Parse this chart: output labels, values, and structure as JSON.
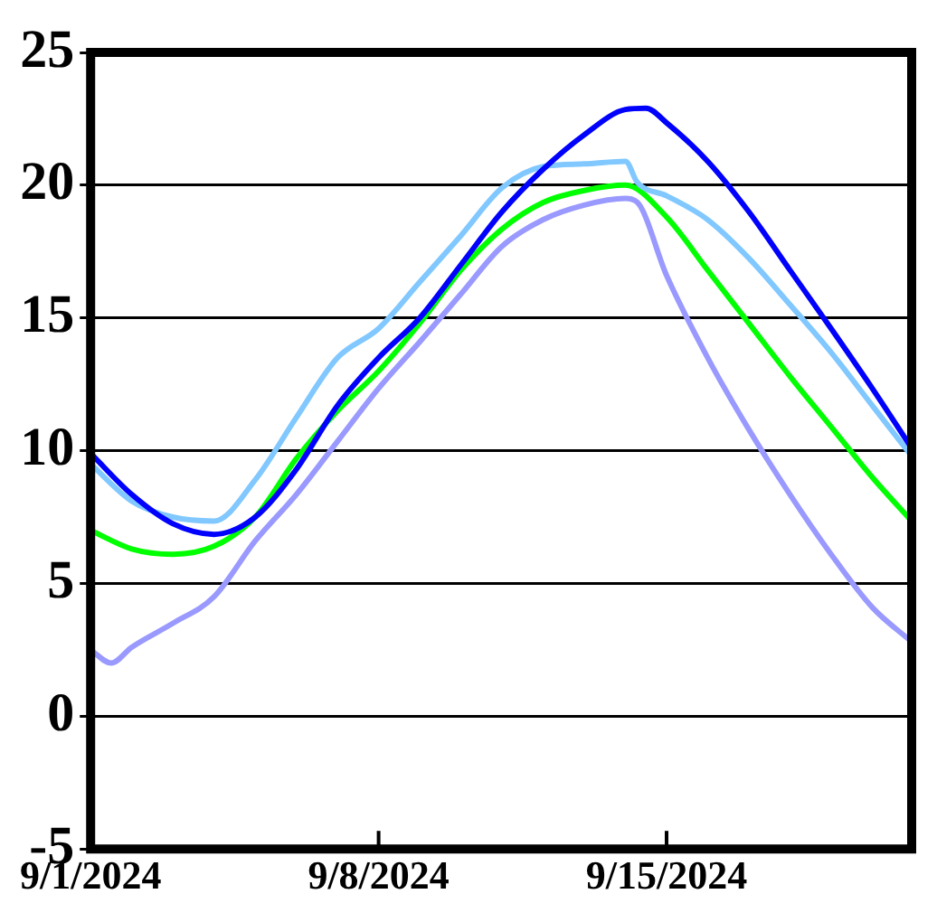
{
  "chart_data": {
    "type": "line",
    "xlim": [
      "2024-09-01",
      "2024-09-20T23:00"
    ],
    "xticks": [
      {
        "value": "2024-09-01",
        "label": "9/1/2024"
      },
      {
        "value": "2024-09-08",
        "label": "9/8/2024"
      },
      {
        "value": "2024-09-15",
        "label": "9/15/2024"
      }
    ],
    "ylim": [
      -5,
      25
    ],
    "yticks": [
      -5,
      0,
      5,
      10,
      15,
      20,
      25
    ],
    "grid": "y",
    "legend": false,
    "marker": "none",
    "line_style": "solid",
    "series": [
      {
        "color": "#0000ff",
        "x": [
          "2024-09-01",
          "2024-09-02",
          "2024-09-03",
          "2024-09-04",
          "2024-09-05",
          "2024-09-06",
          "2024-09-07",
          "2024-09-08",
          "2024-09-09",
          "2024-09-10",
          "2024-09-11",
          "2024-09-12",
          "2024-09-13",
          "2024-09-14",
          "2024-09-14T12:00",
          "2024-09-15",
          "2024-09-16",
          "2024-09-17",
          "2024-09-18",
          "2024-09-19",
          "2024-09-20",
          "2024-09-20T23:00"
        ],
        "values": [
          9.9,
          8.35,
          7.25,
          6.85,
          7.5,
          9.3,
          11.7,
          13.5,
          15,
          17,
          19,
          20.6,
          21.9,
          22.85,
          22.9,
          22.35,
          20.9,
          19,
          16.8,
          14.6,
          12.35,
          10.1
        ]
      },
      {
        "color": "#80c8ff",
        "x": [
          "2024-09-01",
          "2024-09-02",
          "2024-09-03",
          "2024-09-04",
          "2024-09-05",
          "2024-09-06",
          "2024-09-07",
          "2024-09-08",
          "2024-09-09",
          "2024-09-10",
          "2024-09-11",
          "2024-09-12",
          "2024-09-13",
          "2024-09-14",
          "2024-09-14T07:00",
          "2024-09-15",
          "2024-09-16",
          "2024-09-17",
          "2024-09-18",
          "2024-09-19",
          "2024-09-20",
          "2024-09-20T23:00"
        ],
        "values": [
          9.5,
          8.1,
          7.5,
          7.35,
          8.9,
          11.25,
          13.5,
          14.6,
          16.35,
          18.1,
          19.9,
          20.7,
          20.8,
          20.9,
          20.1,
          19.6,
          18.7,
          17.25,
          15.5,
          13.7,
          11.7,
          9.8
        ]
      },
      {
        "color": "#00ff00",
        "x": [
          "2024-09-01",
          "2024-09-02",
          "2024-09-03",
          "2024-09-04",
          "2024-09-05",
          "2024-09-06",
          "2024-09-07",
          "2024-09-08",
          "2024-09-09",
          "2024-09-10",
          "2024-09-11",
          "2024-09-12",
          "2024-09-13",
          "2024-09-14",
          "2024-09-15",
          "2024-09-16",
          "2024-09-17",
          "2024-09-18",
          "2024-09-19",
          "2024-09-20",
          "2024-09-20T23:00"
        ],
        "values": [
          7,
          6.3,
          6.1,
          6.4,
          7.5,
          9.7,
          11.5,
          13,
          14.8,
          16.8,
          18.35,
          19.35,
          19.8,
          20,
          18.8,
          16.8,
          14.8,
          12.8,
          10.9,
          9,
          7.35
        ]
      },
      {
        "color": "#9999ff",
        "x": [
          "2024-09-01",
          "2024-09-01T12:00",
          "2024-09-02",
          "2024-09-03",
          "2024-09-04",
          "2024-09-05",
          "2024-09-06",
          "2024-09-07",
          "2024-09-08",
          "2024-09-09",
          "2024-09-10",
          "2024-09-11",
          "2024-09-12",
          "2024-09-13",
          "2024-09-14",
          "2024-09-14T07:00",
          "2024-09-15",
          "2024-09-16",
          "2024-09-17",
          "2024-09-18",
          "2024-09-19",
          "2024-09-20",
          "2024-09-20T23:00"
        ],
        "values": [
          2.5,
          2,
          2.6,
          3.5,
          4.5,
          6.6,
          8.35,
          10.35,
          12.35,
          14.1,
          15.9,
          17.7,
          18.7,
          19.25,
          19.5,
          19.35,
          16.6,
          13.5,
          10.8,
          8.35,
          6.1,
          4.1,
          2.8
        ]
      }
    ]
  }
}
